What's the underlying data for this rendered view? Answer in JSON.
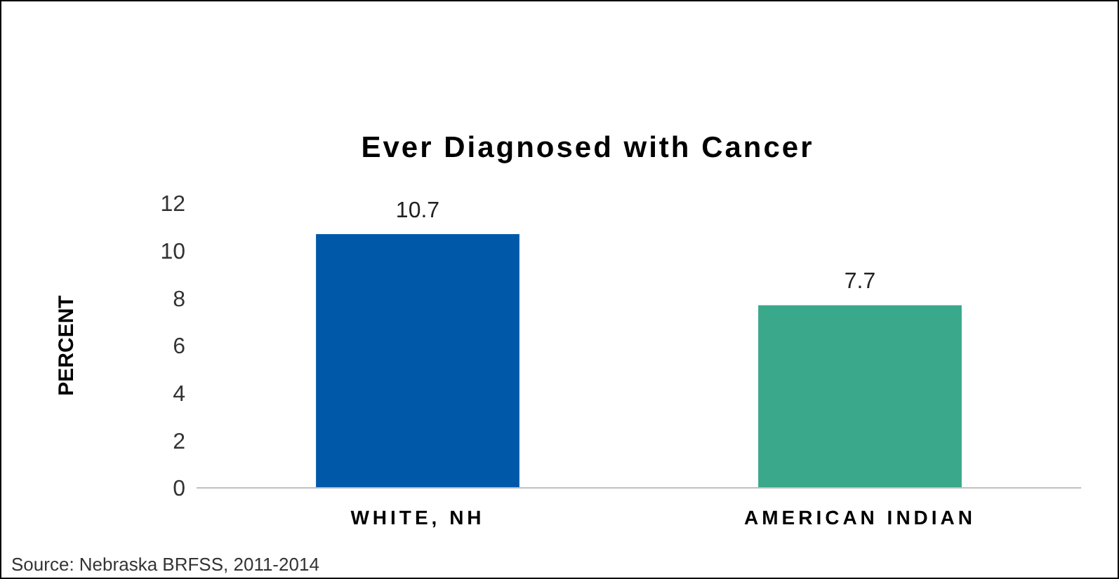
{
  "chart_data": {
    "type": "bar",
    "title": "Ever Diagnosed with Cancer",
    "ylabel": "PERCENT",
    "categories": [
      "WHITE, NH",
      "AMERICAN INDIAN"
    ],
    "values": [
      10.7,
      7.7
    ],
    "colors": [
      "#0059a8",
      "#3aa88a"
    ],
    "ylim": [
      0,
      12
    ],
    "yticks": [
      0,
      2,
      4,
      6,
      8,
      10,
      12
    ],
    "data_labels": true,
    "annotations": [
      "Source: Nebraska BRFSS, 2011-2014"
    ]
  }
}
